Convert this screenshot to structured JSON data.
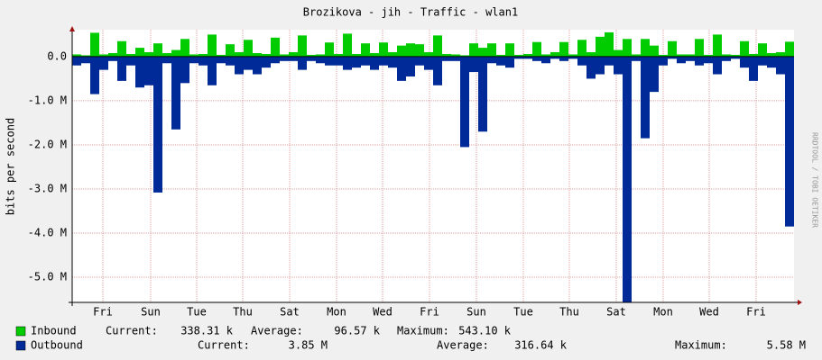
{
  "chart_data": {
    "type": "area",
    "title": "Brozikova - jih - Traffic - wlan1",
    "y_label": "bits per second",
    "watermark": "RRDTOOL / TOBI OETIKER",
    "ylim": [
      -5570000,
      610000
    ],
    "yticks": [
      {
        "value": 0,
        "label": "0.0"
      },
      {
        "value": -1000000,
        "label": "-1.0 M"
      },
      {
        "value": -2000000,
        "label": "-2.0 M"
      },
      {
        "value": -3000000,
        "label": "-3.0 M"
      },
      {
        "value": -4000000,
        "label": "-4.0 M"
      },
      {
        "value": -5000000,
        "label": "-5.0 M"
      }
    ],
    "xlim": [
      0,
      80
    ],
    "xticks": [
      {
        "value": 3.4,
        "label": "Fri"
      },
      {
        "value": 8.7,
        "label": "Sun"
      },
      {
        "value": 13.8,
        "label": "Tue"
      },
      {
        "value": 18.9,
        "label": "Thu"
      },
      {
        "value": 24.1,
        "label": "Sat"
      },
      {
        "value": 29.3,
        "label": "Mon"
      },
      {
        "value": 34.4,
        "label": "Wed"
      },
      {
        "value": 39.6,
        "label": "Fri"
      },
      {
        "value": 44.8,
        "label": "Sun"
      },
      {
        "value": 50.0,
        "label": "Tue"
      },
      {
        "value": 55.1,
        "label": "Thu"
      },
      {
        "value": 60.3,
        "label": "Sat"
      },
      {
        "value": 65.5,
        "label": "Mon"
      },
      {
        "value": 70.6,
        "label": "Wed"
      },
      {
        "value": 75.8,
        "label": "Fri"
      }
    ],
    "grid": true,
    "series": [
      {
        "name": "Inbound",
        "color": "#00cc00",
        "values": [
          50000,
          30000,
          540000,
          50000,
          80000,
          350000,
          60000,
          200000,
          100000,
          300000,
          80000,
          150000,
          400000,
          50000,
          60000,
          500000,
          40000,
          280000,
          100000,
          380000,
          80000,
          60000,
          430000,
          50000,
          100000,
          480000,
          40000,
          50000,
          320000,
          60000,
          520000,
          60000,
          300000,
          80000,
          320000,
          100000,
          250000,
          300000,
          280000,
          100000,
          480000,
          60000,
          50000,
          30000,
          300000,
          200000,
          300000,
          40000,
          300000,
          40000,
          60000,
          330000,
          50000,
          100000,
          330000,
          50000,
          380000,
          100000,
          450000,
          550000,
          150000,
          400000,
          50000,
          400000,
          250000,
          40000,
          350000,
          50000,
          50000,
          400000,
          40000,
          500000,
          50000,
          40000,
          350000,
          60000,
          300000,
          80000,
          100000,
          338000
        ],
        "stats": [
          {
            "name": "Current:",
            "value": 338310,
            "label": "338.31 k"
          },
          {
            "name": "Average:",
            "value": 96570,
            "label": "96.57 k"
          },
          {
            "name": "Maximum:",
            "value": 543100,
            "label": "543.10 k"
          }
        ]
      },
      {
        "name": "Outbound",
        "color": "#002a97",
        "values": [
          -200000,
          -150000,
          -850000,
          -300000,
          -100000,
          -550000,
          -200000,
          -700000,
          -650000,
          -3080000,
          -150000,
          -1650000,
          -600000,
          -150000,
          -200000,
          -650000,
          -150000,
          -200000,
          -400000,
          -300000,
          -400000,
          -250000,
          -150000,
          -100000,
          -100000,
          -300000,
          -100000,
          -150000,
          -200000,
          -200000,
          -300000,
          -250000,
          -200000,
          -300000,
          -200000,
          -250000,
          -550000,
          -450000,
          -200000,
          -300000,
          -650000,
          -100000,
          -100000,
          -2050000,
          -350000,
          -1700000,
          -150000,
          -200000,
          -250000,
          -50000,
          -50000,
          -100000,
          -150000,
          -50000,
          -100000,
          -50000,
          -200000,
          -500000,
          -400000,
          -200000,
          -400000,
          -5580000,
          -100000,
          -1850000,
          -800000,
          -200000,
          -50000,
          -150000,
          -100000,
          -200000,
          -150000,
          -400000,
          -100000,
          -50000,
          -250000,
          -550000,
          -200000,
          -250000,
          -400000,
          -3850000
        ],
        "stats": [
          {
            "name": "Current:",
            "value": 3850000,
            "label": "3.85 M"
          },
          {
            "name": "Average:",
            "value": 316640,
            "label": "316.64 k"
          },
          {
            "name": "Maximum:",
            "value": 5580000,
            "label": "5.58 M"
          }
        ]
      }
    ]
  }
}
